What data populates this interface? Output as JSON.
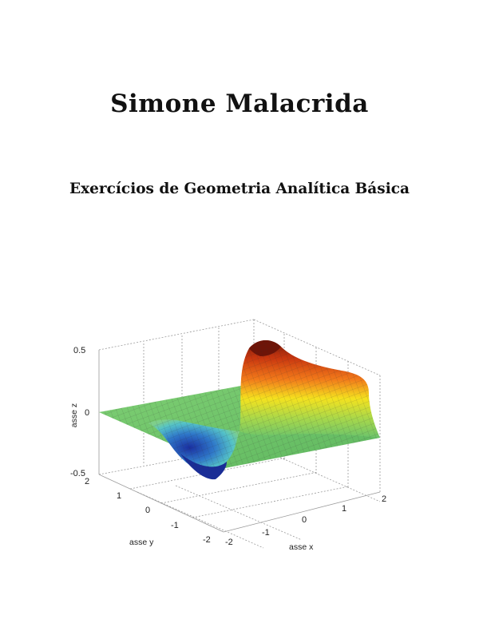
{
  "cover": {
    "author": "Simone Malacrida",
    "title": "Exercícios de Geometria Analítica Básica"
  },
  "figure": {
    "zlabel": "asse z",
    "ylabel": "asse y",
    "xlabel": "asse x",
    "z_ticks": [
      "0.5",
      "0",
      "-0.5"
    ],
    "y_ticks": [
      "2",
      "1",
      "0",
      "-1",
      "-2"
    ],
    "x_ticks": [
      "-2",
      "-1",
      "0",
      "1",
      "2"
    ],
    "colors": {
      "surface_low": "#1a3fa8",
      "surface_mid": "#6cc46b",
      "surface_high": "#b8300e",
      "grid": "#888888"
    }
  }
}
